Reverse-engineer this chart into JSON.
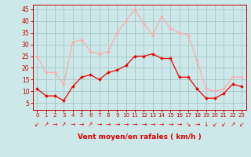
{
  "hours": [
    0,
    1,
    2,
    3,
    4,
    5,
    6,
    7,
    8,
    9,
    10,
    11,
    12,
    13,
    14,
    15,
    16,
    17,
    18,
    19,
    20,
    21,
    22,
    23
  ],
  "wind_avg": [
    11,
    8,
    8,
    6,
    12,
    16,
    17,
    15,
    18,
    19,
    21,
    25,
    25,
    26,
    24,
    24,
    16,
    16,
    11,
    7,
    7,
    9,
    13,
    12
  ],
  "wind_gust": [
    25,
    18,
    18,
    13,
    31,
    32,
    27,
    26,
    27,
    35,
    40,
    45,
    39,
    34,
    42,
    37,
    35,
    34,
    23,
    11,
    10,
    11,
    16,
    16
  ],
  "bg_color": "#cce8e8",
  "grid_color": "#aacccc",
  "line_avg_color": "#ee0000",
  "line_gust_color": "#ffaaaa",
  "xlabel": "Vent moyen/en rafales ( km/h )",
  "xlabel_color": "#dd0000",
  "ylabel_ticks": [
    5,
    10,
    15,
    20,
    25,
    30,
    35,
    40,
    45
  ],
  "ylim": [
    2,
    47
  ],
  "xlim": [
    -0.5,
    23.5
  ],
  "arrow_chars": [
    "↙",
    "↗",
    "→",
    "↗",
    "→",
    "→",
    "↗",
    "→",
    "→",
    "→",
    "→",
    "→",
    "→",
    "→",
    "→",
    "→",
    "→",
    "↘",
    "→",
    "↓",
    "↙",
    "↙",
    "↗",
    "↙"
  ]
}
